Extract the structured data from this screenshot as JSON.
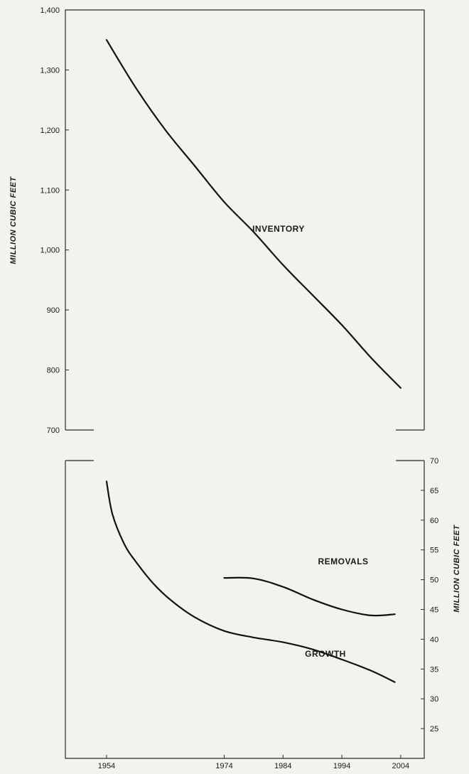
{
  "chart_data": [
    {
      "type": "line",
      "panel": "top",
      "ylabel": "MILLION CUBIC FEET",
      "ylim": [
        700,
        1400
      ],
      "yticks": [
        "1,400",
        "1,300",
        "1,200",
        "1,100",
        "1,000",
        "900",
        "800",
        "700"
      ],
      "ytick_values": [
        1400,
        1300,
        1200,
        1100,
        1000,
        900,
        800,
        700
      ],
      "grid": false,
      "series": [
        {
          "name": "INVENTORY",
          "x": [
            1954,
            1959,
            1964,
            1969,
            1974,
            1979,
            1984,
            1989,
            1994,
            1999,
            2004
          ],
          "y": [
            1350,
            1270,
            1200,
            1140,
            1080,
            1030,
            975,
            925,
            875,
            820,
            770
          ]
        }
      ]
    },
    {
      "type": "line",
      "panel": "bottom",
      "ylabel": "MILLION CUBIC FEET",
      "ylim": [
        20,
        70
      ],
      "yticks": [
        "70",
        "65",
        "60",
        "55",
        "50",
        "45",
        "40",
        "35",
        "30",
        "25"
      ],
      "ytick_values": [
        70,
        65,
        60,
        55,
        50,
        45,
        40,
        35,
        30,
        25
      ],
      "xlim": [
        1947,
        2008
      ],
      "xticks": [
        "1954",
        "1974",
        "1984",
        "1994",
        "2004"
      ],
      "xtick_values": [
        1954,
        1974,
        1984,
        1994,
        2004
      ],
      "grid": false,
      "series": [
        {
          "name": "REMOVALS",
          "x": [
            1974,
            1979,
            1984,
            1989,
            1994,
            1999,
            2003
          ],
          "y": [
            50.3,
            50.2,
            48.8,
            46.7,
            45.0,
            44.0,
            44.2
          ]
        },
        {
          "name": "GROWTH",
          "x": [
            1954,
            1955,
            1957,
            1959,
            1962,
            1965,
            1969,
            1974,
            1979,
            1984,
            1989,
            1994,
            1999,
            2003
          ],
          "y": [
            66.5,
            61,
            56,
            53,
            49.3,
            46.5,
            43.7,
            41.4,
            40.3,
            39.5,
            38.3,
            36.6,
            34.7,
            32.8
          ]
        }
      ]
    }
  ]
}
